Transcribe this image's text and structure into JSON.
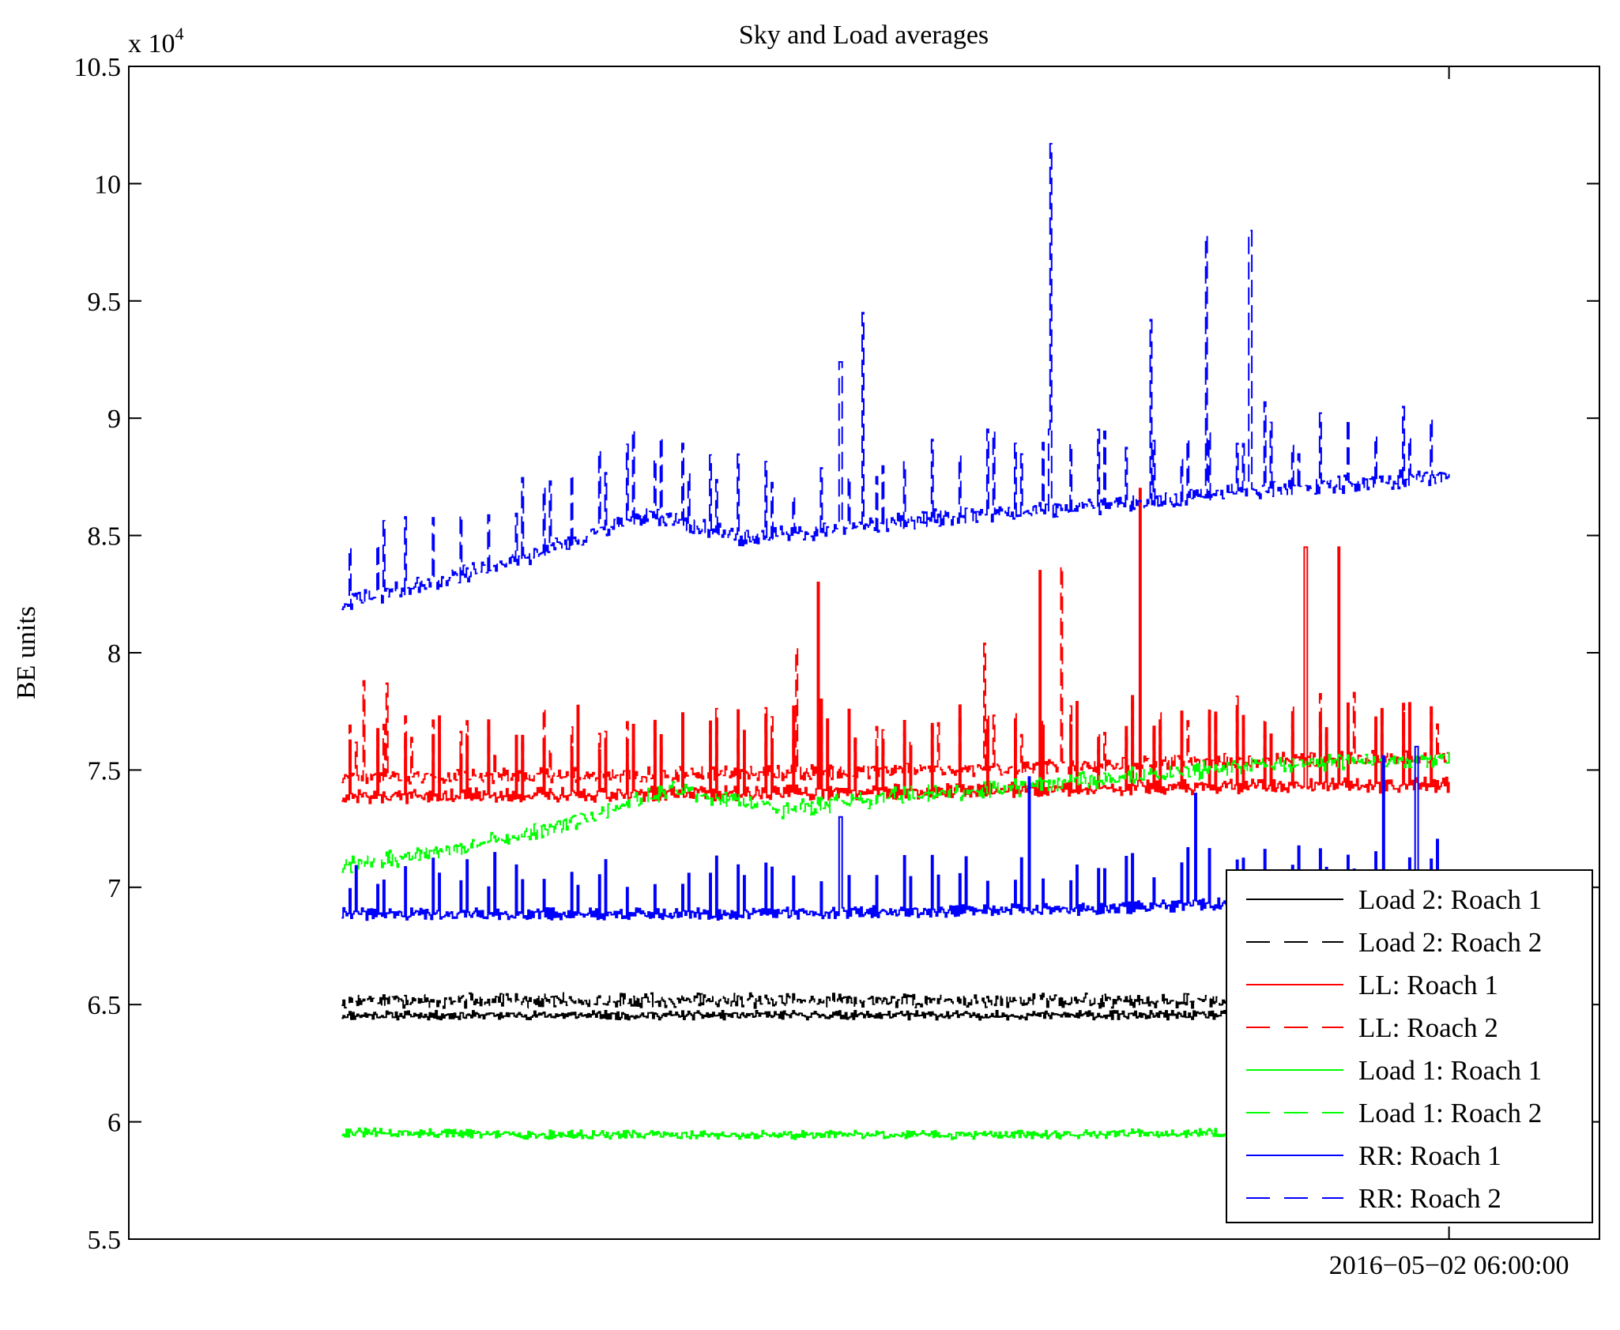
{
  "chart_data": {
    "type": "line",
    "title": "Sky and Load averages",
    "ylabel": "BE units",
    "xlabel": "",
    "ylim": [
      55000,
      105000
    ],
    "y_multiplier_label": "x 10",
    "y_multiplier_exponent": "4",
    "y_ticks": [
      55000,
      60000,
      65000,
      70000,
      75000,
      80000,
      85000,
      90000,
      95000,
      100000,
      105000
    ],
    "y_tick_labels": [
      "5.5",
      "6",
      "6.5",
      "7",
      "7.5",
      "8",
      "8.5",
      "9",
      "9.5",
      "10",
      "10.5"
    ],
    "x_ticks": [
      {
        "t": 0.8977,
        "label": "2016−05−02 06:00:00"
      }
    ],
    "x_range_fraction": [
      0.1447,
      0.8977
    ],
    "grid": false,
    "legend_position": "bottom-right",
    "series": [
      {
        "name": "Load 2: Roach 1",
        "color": "#000000",
        "style": "solid",
        "base": [
          64500,
          64500
        ],
        "spike_height": 0,
        "noise": 150,
        "seed": 11
      },
      {
        "name": "Load 2: Roach 2",
        "color": "#000000",
        "style": "dashed",
        "base": [
          65100,
          65100
        ],
        "spike_height": 0,
        "noise": 250,
        "seed": 12
      },
      {
        "name": "LL: Roach 1",
        "color": "#ff0000",
        "style": "solid",
        "base": [
          73800,
          73900,
          74000,
          74200,
          74300
        ],
        "spike_height": 3500,
        "noise": 250,
        "seed": 21,
        "big_spikes": [
          [
            0.43,
            83000
          ],
          [
            0.63,
            83500
          ],
          [
            0.72,
            87000
          ],
          [
            0.87,
            84500
          ],
          [
            0.9,
            84500
          ]
        ]
      },
      {
        "name": "LL: Roach 2",
        "color": "#ff0000",
        "style": "dashed",
        "base": [
          74600,
          74700,
          74800,
          75000,
          75300,
          75500
        ],
        "spike_height": 2500,
        "noise": 250,
        "seed": 22,
        "big_spikes": [
          [
            0.02,
            78800
          ],
          [
            0.04,
            78700
          ],
          [
            0.41,
            80200
          ],
          [
            0.58,
            80400
          ],
          [
            0.65,
            83700
          ]
        ]
      },
      {
        "name": "Load 1: Roach 1",
        "color": "#00ff00",
        "style": "solid",
        "base": [
          59500,
          59400,
          59400,
          59400,
          59500,
          59700
        ],
        "spike_height": 0,
        "noise": 150,
        "seed": 31
      },
      {
        "name": "Load 1: Roach 2",
        "color": "#00ff00",
        "style": "dashed",
        "base": [
          70800,
          71500,
          72600,
          74100,
          73200,
          73800,
          74100,
          74600,
          75000,
          75300,
          75400
        ],
        "spike_height": 0,
        "noise": 300,
        "seed": 32
      },
      {
        "name": "RR: Roach 1",
        "color": "#0000ff",
        "style": "solid",
        "base": [
          68800,
          68800,
          68800,
          68900,
          69000,
          69300,
          69500
        ],
        "spike_height": 2400,
        "noise": 200,
        "seed": 41,
        "big_spikes": [
          [
            0.45,
            73000
          ],
          [
            0.62,
            74700
          ],
          [
            0.77,
            74000
          ],
          [
            0.94,
            75600
          ],
          [
            0.97,
            76000
          ]
        ]
      },
      {
        "name": "RR: Roach 2",
        "color": "#0000ff",
        "style": "dashed",
        "base": [
          82000,
          83000,
          84200,
          85800,
          84800,
          85200,
          85700,
          86000,
          86300,
          86800,
          87100,
          87500
        ],
        "spike_height": 3500,
        "noise": 300,
        "seed": 42,
        "big_spikes": [
          [
            0.45,
            92400
          ],
          [
            0.47,
            94500
          ],
          [
            0.64,
            101700
          ],
          [
            0.73,
            94200
          ],
          [
            0.78,
            97800
          ],
          [
            0.82,
            98000
          ]
        ]
      }
    ]
  }
}
